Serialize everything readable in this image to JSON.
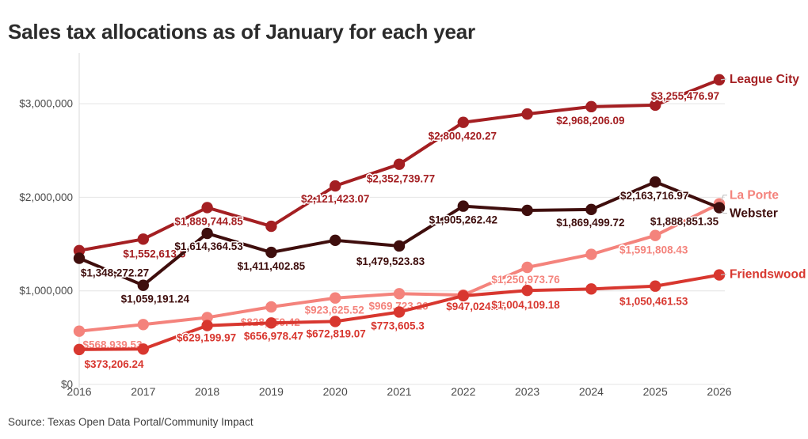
{
  "title": "Sales tax allocations as of January for each year",
  "source": "Source: Texas Open Data Portal/Community Impact",
  "chart_data": {
    "type": "line",
    "x": [
      2016,
      2017,
      2018,
      2019,
      2020,
      2021,
      2022,
      2023,
      2024,
      2025,
      2026
    ],
    "xlabel": "",
    "ylabel": "",
    "ylim": [
      0,
      3500000
    ],
    "grid": "horizontal",
    "legend_position": "direct-labels-right",
    "y_ticks": [
      {
        "value": 0,
        "label": "$0"
      },
      {
        "value": 1000000,
        "label": "$1,000,000"
      },
      {
        "value": 2000000,
        "label": "$2,000,000"
      },
      {
        "value": 3000000,
        "label": "$3,000,000"
      }
    ],
    "series": [
      {
        "name": "La Porte",
        "color": "#f4837c",
        "legend_dy": -6,
        "values": [
          568939.53,
          640000,
          715000,
          828459.42,
          923625.52,
          969723.26,
          955000,
          1250973.76,
          1390000,
          1591808.43,
          1930000
        ],
        "labels": [
          "$568,939.53",
          null,
          null,
          "$828,459.42",
          "$923,625.52",
          "$969,723.26",
          null,
          "$1,250,973.76",
          null,
          "$1,591,808.43",
          null
        ],
        "label_offsets": [
          [
            42,
            17
          ],
          null,
          null,
          [
            -1,
            19
          ],
          [
            -1,
            15
          ],
          [
            -1,
            15
          ],
          null,
          [
            -2,
            15
          ],
          null,
          [
            -2,
            18
          ],
          null
        ]
      },
      {
        "name": "Friendswood",
        "color": "#d8372f",
        "legend_dy": 4,
        "values": [
          373206.24,
          378000,
          629199.97,
          656978.47,
          672819.07,
          773605.3,
          947024.35,
          1004109.18,
          1020000,
          1050461.53,
          1170000
        ],
        "labels": [
          "$373,206.24",
          null,
          "$629,199.97",
          "$656,978.47",
          "$672,819.07",
          "$773,605.3",
          "$947,024.35",
          "$1,004,109.18",
          null,
          "$1,050,461.53",
          null
        ],
        "label_offsets": [
          [
            44,
            18
          ],
          null,
          [
            -1,
            15
          ],
          [
            3,
            16
          ],
          [
            1,
            15
          ],
          [
            -2,
            17
          ],
          [
            16,
            13
          ],
          [
            -2,
            18
          ],
          null,
          [
            -2,
            19
          ],
          null
        ]
      },
      {
        "name": "League City",
        "color": "#a41f22",
        "legend_dy": 4,
        "values": [
          1430000,
          1552613.5,
          1889744.85,
          1690000,
          2121423.07,
          2352739.77,
          2800420.27,
          2890000,
          2968206.09,
          2985000,
          3255476.97
        ],
        "labels": [
          null,
          "$1,552,613.5",
          "$1,889,744.85",
          null,
          "$2,121,423.07",
          "$2,352,739.77",
          "$2,800,420.27",
          null,
          "$2,968,206.09",
          null,
          "$3,255,476.97"
        ],
        "label_offsets": [
          null,
          [
            14,
            18
          ],
          [
            2,
            17
          ],
          null,
          [
            0,
            16
          ],
          [
            2,
            18
          ],
          [
            -1,
            17
          ],
          null,
          [
            -1,
            17
          ],
          null,
          [
            -43,
            20
          ]
        ]
      },
      {
        "name": "Webster",
        "color": "#3f0e0d",
        "legend_dy": 12,
        "values": [
          1348272.27,
          1059191.24,
          1614364.53,
          1411402.85,
          1540000,
          1479523.83,
          1905262.42,
          1860000,
          1869499.72,
          2163716.97,
          1888851.35
        ],
        "labels": [
          "$1,348,272.27",
          "$1,059,191.24",
          "$1,614,364.53",
          "$1,411,402.85",
          null,
          "$1,479,523.83",
          "$1,905,262.42",
          null,
          "$1,869,499.72",
          "$2,163,716.97",
          "$1,888,851.35"
        ],
        "label_offsets": [
          [
            45,
            18
          ],
          [
            15,
            17
          ],
          [
            2,
            16
          ],
          [
            0,
            17
          ],
          null,
          [
            -11,
            19
          ],
          [
            0,
            17
          ],
          null,
          [
            -1,
            16
          ],
          [
            -1,
            17
          ],
          [
            -44,
            17
          ]
        ]
      }
    ]
  }
}
